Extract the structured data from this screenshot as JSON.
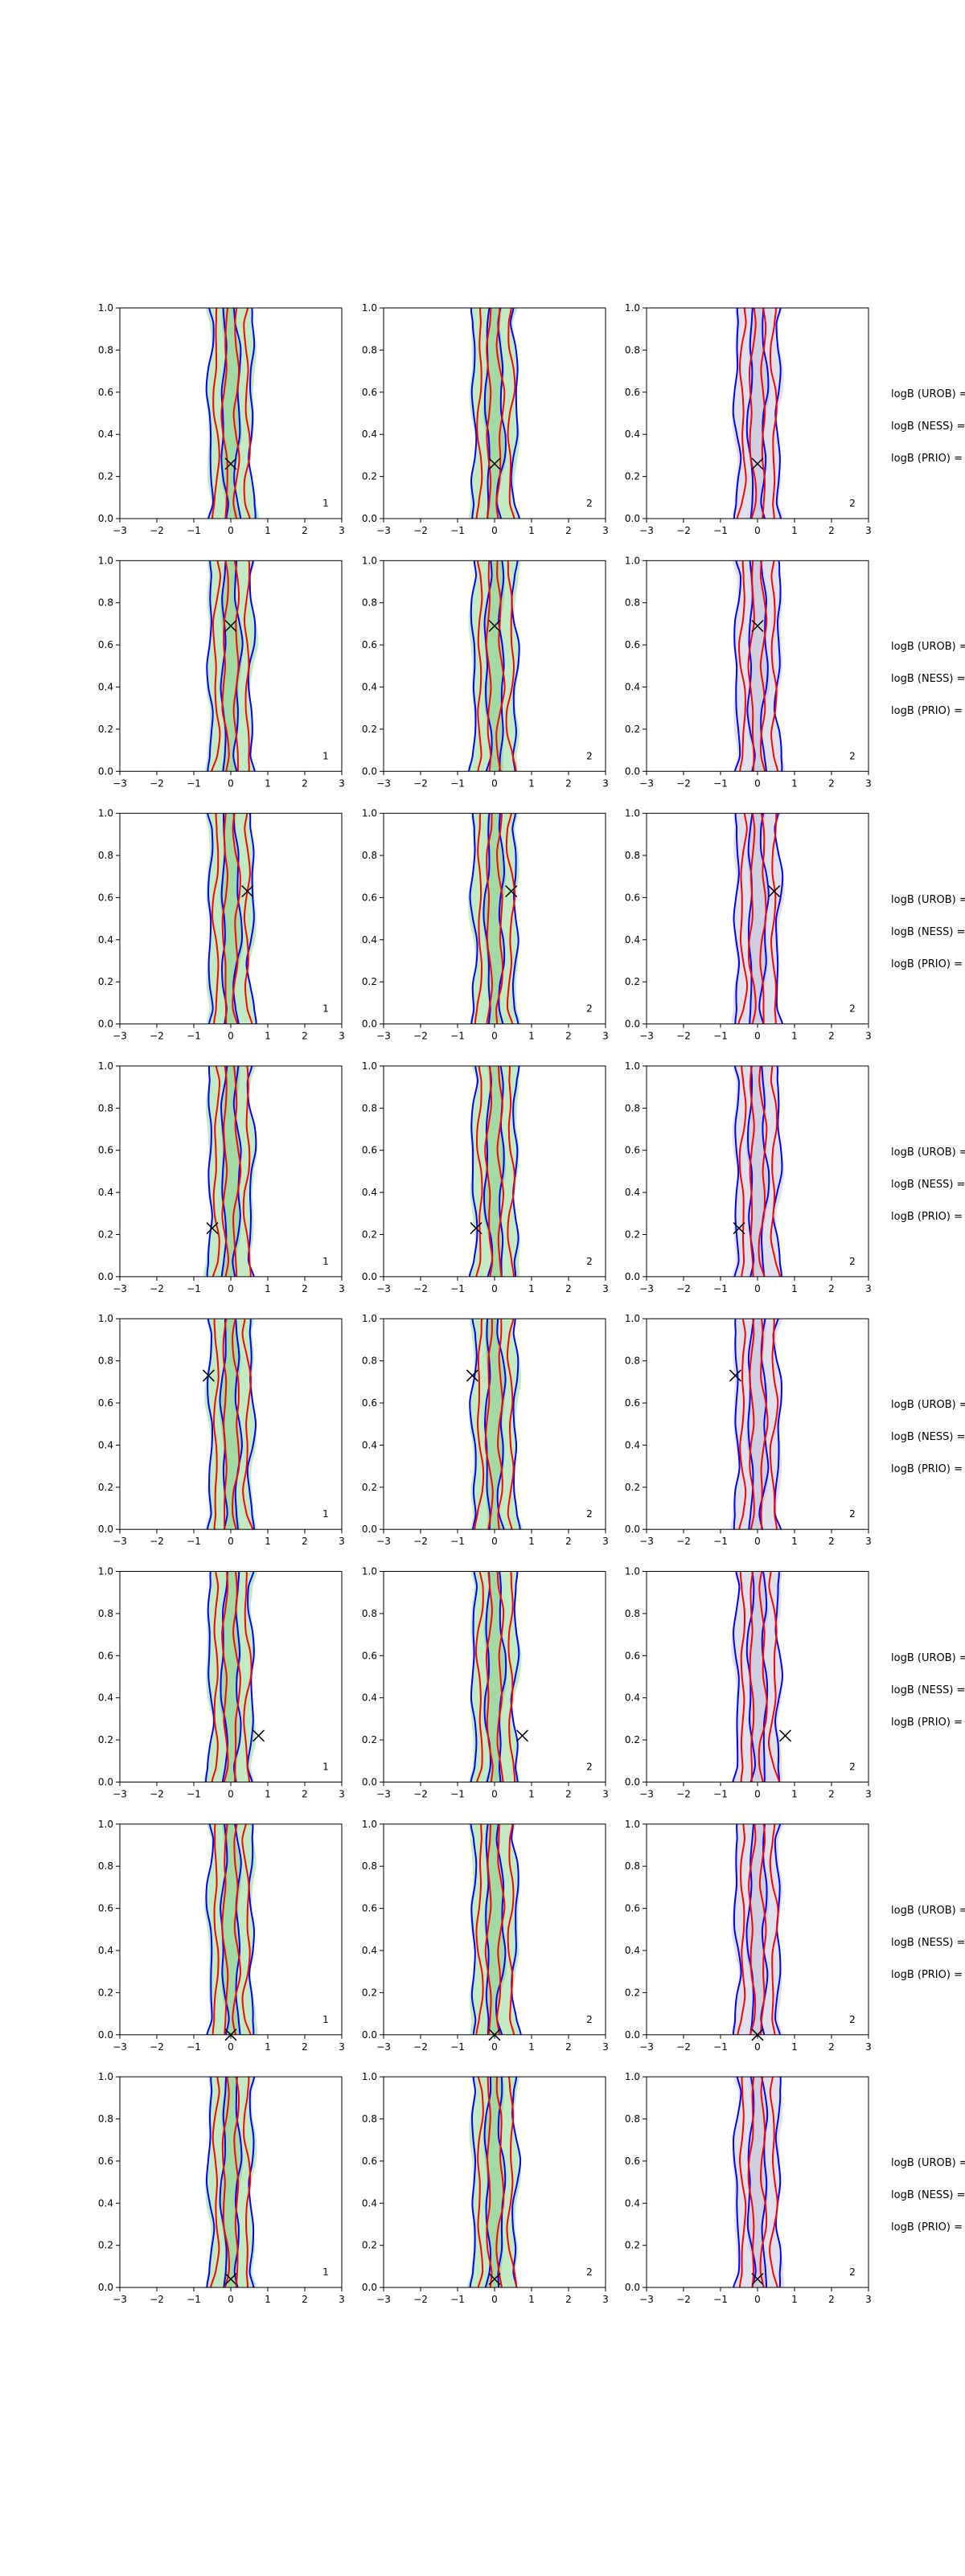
{
  "colors": {
    "blue_contour": "#0000ff",
    "red_contour": "#ff0000",
    "green_fill": "#b8e8b8",
    "grey_fill": "#dcdcea",
    "axes": "#000000"
  },
  "annotations": [
    "logB (UROB) =",
    "logB (NESS) =",
    "logB (PRIO) ="
  ],
  "chart_data": {
    "type": "contour",
    "layout": "8 rows x 3 columns of density contour panels",
    "xlim": [
      -3,
      3
    ],
    "ylim": [
      0.0,
      1.0
    ],
    "xticks": [
      "−3",
      "−2",
      "−1",
      "0",
      "1",
      "2",
      "3"
    ],
    "yticks": [
      "0.0",
      "0.2",
      "0.4",
      "0.6",
      "0.8",
      "1.0"
    ],
    "corner_labels": [
      "1",
      "2",
      "2"
    ],
    "rows": [
      {
        "marker": [
          0.0,
          0.26
        ]
      },
      {
        "marker": [
          0.0,
          0.69
        ]
      },
      {
        "marker": [
          0.45,
          0.63
        ]
      },
      {
        "marker": [
          -0.5,
          0.23
        ]
      },
      {
        "marker": [
          -0.6,
          0.73
        ]
      },
      {
        "marker": [
          0.75,
          0.22
        ]
      },
      {
        "marker": [
          0.0,
          0.0
        ]
      },
      {
        "marker": [
          0.0,
          0.04
        ]
      }
    ]
  }
}
